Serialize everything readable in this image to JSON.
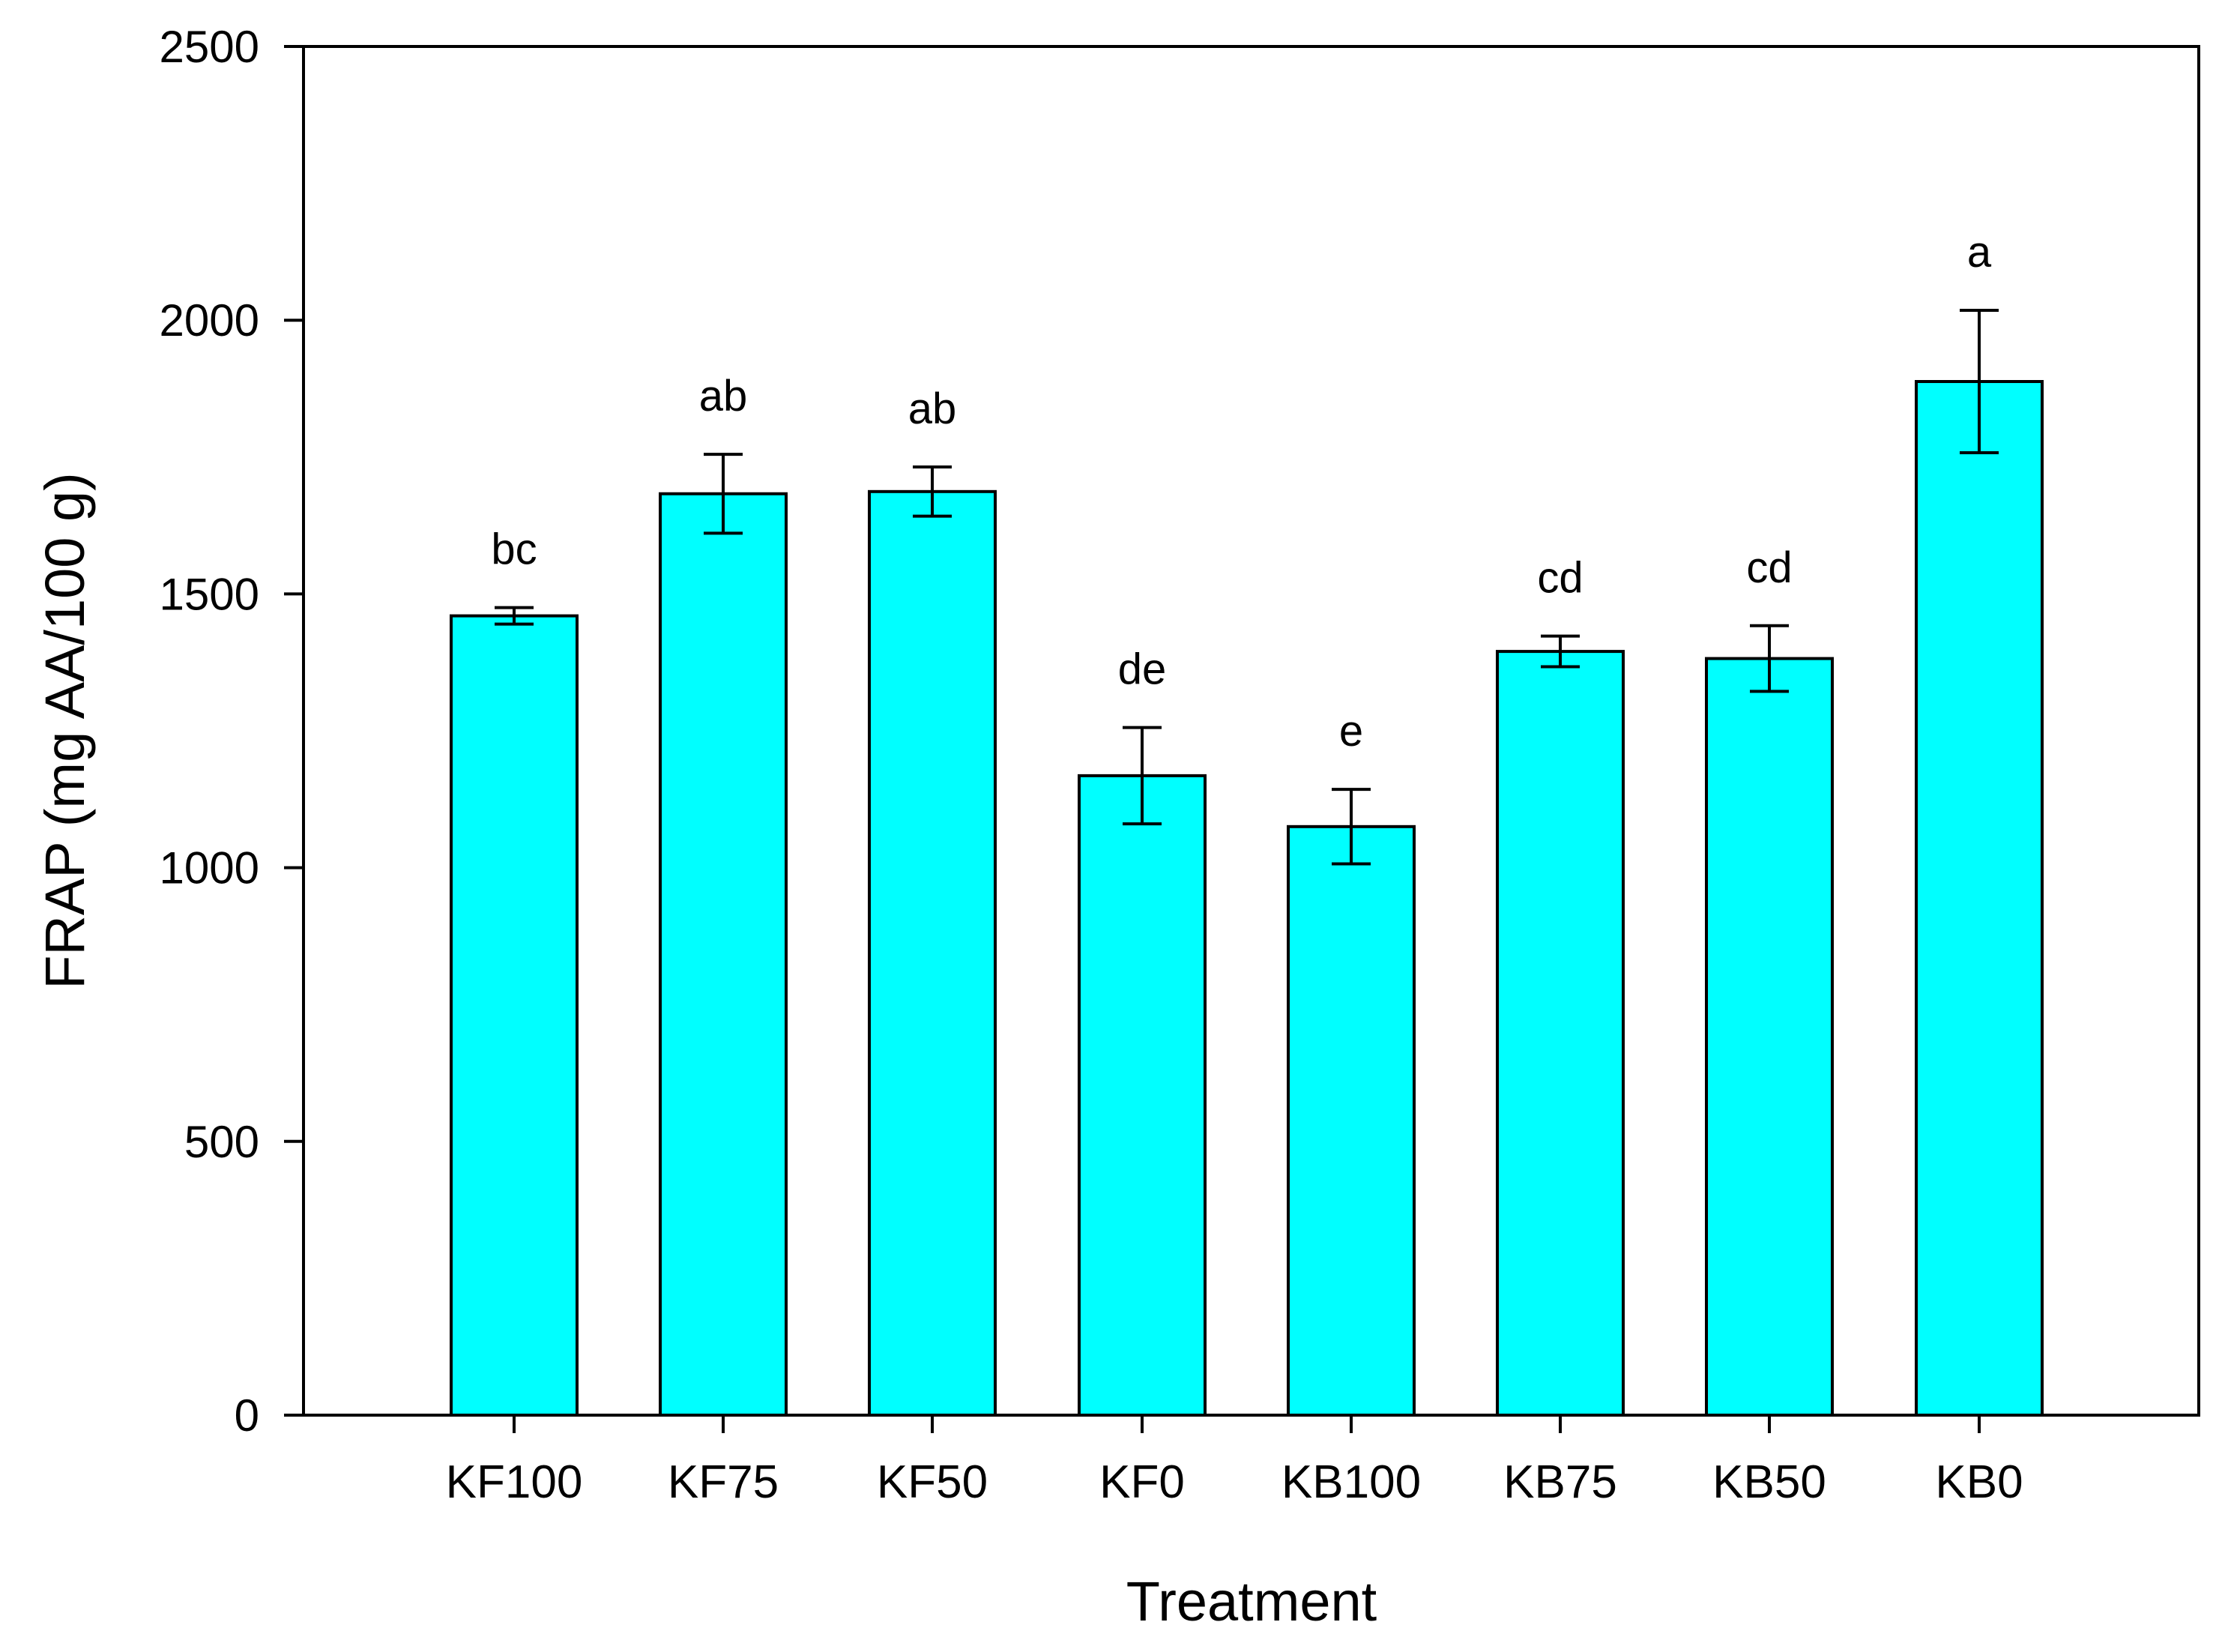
{
  "chart_data": {
    "type": "bar",
    "title": "",
    "xlabel": "Treatment",
    "ylabel": "FRAP (mg AA/100 g)",
    "ylim": [
      0,
      2500
    ],
    "yticks": [
      0,
      500,
      1000,
      1500,
      2000,
      2500
    ],
    "categories": [
      "KF100",
      "KF75",
      "KF50",
      "KF0",
      "KB100",
      "KB75",
      "KB50",
      "KB0"
    ],
    "values": [
      1460,
      1683,
      1687,
      1168,
      1075,
      1395,
      1382,
      1888
    ],
    "errors": [
      15,
      72,
      45,
      88,
      68,
      28,
      60,
      130
    ],
    "significance_letters": [
      "bc",
      "ab",
      "ab",
      "de",
      "e",
      "cd",
      "cd",
      "a"
    ],
    "bar_color": "#00FFFF",
    "edge_color": "#000000",
    "grid": false,
    "legend": "none"
  }
}
